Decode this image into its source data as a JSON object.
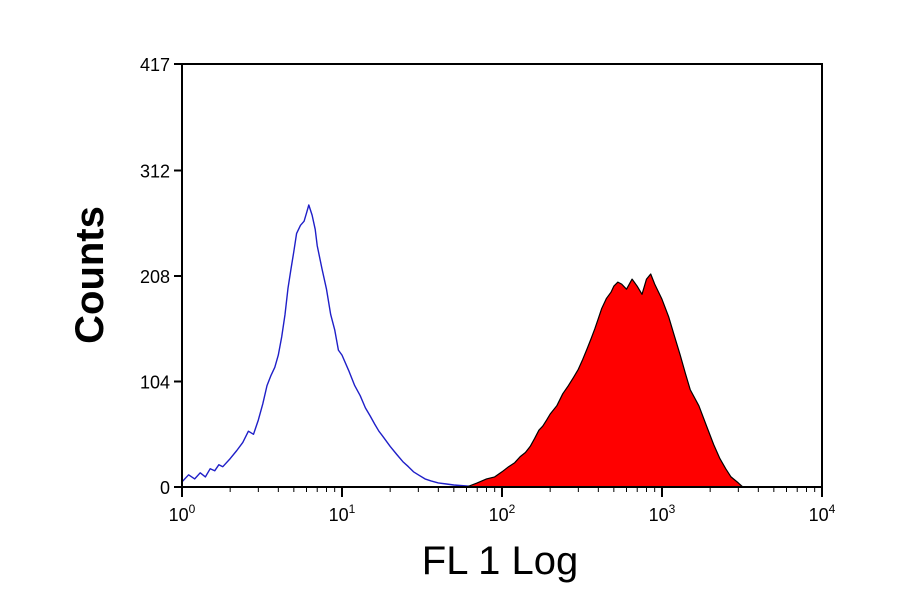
{
  "chart_data": {
    "type": "area",
    "title": "",
    "xlabel": "FL 1 Log",
    "ylabel": "Counts",
    "x_scale": "log",
    "xlim": [
      1,
      10000
    ],
    "ylim": [
      0,
      417
    ],
    "x_ticks": [
      {
        "value": 1,
        "base": "10",
        "exp": "0"
      },
      {
        "value": 10,
        "base": "10",
        "exp": "1"
      },
      {
        "value": 100,
        "base": "10",
        "exp": "2"
      },
      {
        "value": 1000,
        "base": "10",
        "exp": "3"
      },
      {
        "value": 10000,
        "base": "10",
        "exp": "4"
      }
    ],
    "y_ticks": [
      {
        "value": 0,
        "label": "0"
      },
      {
        "value": 104,
        "label": "104"
      },
      {
        "value": 208,
        "label": "208"
      },
      {
        "value": 312,
        "label": "312"
      },
      {
        "value": 417,
        "label": "417"
      }
    ],
    "grid": false,
    "legend": "none",
    "series": [
      {
        "style": "outline",
        "color": "#1f1fc8",
        "points": [
          [
            1.0,
            5
          ],
          [
            1.1,
            12
          ],
          [
            1.2,
            8
          ],
          [
            1.3,
            14
          ],
          [
            1.4,
            10
          ],
          [
            1.5,
            18
          ],
          [
            1.6,
            16
          ],
          [
            1.7,
            22
          ],
          [
            1.8,
            20
          ],
          [
            2.0,
            28
          ],
          [
            2.2,
            36
          ],
          [
            2.4,
            44
          ],
          [
            2.6,
            55
          ],
          [
            2.8,
            52
          ],
          [
            3.0,
            66
          ],
          [
            3.2,
            82
          ],
          [
            3.4,
            100
          ],
          [
            3.6,
            110
          ],
          [
            3.8,
            118
          ],
          [
            4.0,
            130
          ],
          [
            4.2,
            148
          ],
          [
            4.4,
            170
          ],
          [
            4.6,
            196
          ],
          [
            4.8,
            215
          ],
          [
            5.0,
            232
          ],
          [
            5.2,
            250
          ],
          [
            5.5,
            258
          ],
          [
            5.8,
            262
          ],
          [
            6.0,
            270
          ],
          [
            6.2,
            278
          ],
          [
            6.5,
            268
          ],
          [
            6.8,
            254
          ],
          [
            7.0,
            238
          ],
          [
            7.5,
            215
          ],
          [
            8.0,
            195
          ],
          [
            8.5,
            170
          ],
          [
            9.0,
            155
          ],
          [
            9.5,
            135
          ],
          [
            10.0,
            130
          ],
          [
            11.0,
            115
          ],
          [
            12.0,
            100
          ],
          [
            13.0,
            90
          ],
          [
            14.0,
            78
          ],
          [
            15.0,
            70
          ],
          [
            16.0,
            62
          ],
          [
            17.0,
            55
          ],
          [
            18.0,
            50
          ],
          [
            20.0,
            40
          ],
          [
            22.0,
            32
          ],
          [
            24.0,
            25
          ],
          [
            26.0,
            20
          ],
          [
            28.0,
            15
          ],
          [
            30.0,
            12
          ],
          [
            33.0,
            8
          ],
          [
            36.0,
            6
          ],
          [
            40.0,
            4
          ],
          [
            45.0,
            3
          ],
          [
            50.0,
            2
          ],
          [
            60.0,
            1
          ],
          [
            70.0,
            0
          ]
        ]
      },
      {
        "style": "filled",
        "color": "#ff0000",
        "outline_color": "#000000",
        "points": [
          [
            60.0,
            0
          ],
          [
            70.0,
            4
          ],
          [
            80.0,
            8
          ],
          [
            90.0,
            10
          ],
          [
            100.0,
            15
          ],
          [
            110.0,
            20
          ],
          [
            120.0,
            24
          ],
          [
            130.0,
            30
          ],
          [
            140.0,
            34
          ],
          [
            150.0,
            40
          ],
          [
            160.0,
            48
          ],
          [
            170.0,
            56
          ],
          [
            180.0,
            60
          ],
          [
            190.0,
            66
          ],
          [
            200.0,
            72
          ],
          [
            220.0,
            80
          ],
          [
            240.0,
            92
          ],
          [
            260.0,
            100
          ],
          [
            280.0,
            108
          ],
          [
            300.0,
            116
          ],
          [
            320.0,
            126
          ],
          [
            340.0,
            136
          ],
          [
            360.0,
            146
          ],
          [
            380.0,
            156
          ],
          [
            400.0,
            166
          ],
          [
            420.0,
            176
          ],
          [
            450.0,
            186
          ],
          [
            480.0,
            192
          ],
          [
            500.0,
            198
          ],
          [
            530.0,
            202
          ],
          [
            560.0,
            200
          ],
          [
            600.0,
            195
          ],
          [
            650.0,
            205
          ],
          [
            700.0,
            198
          ],
          [
            750.0,
            190
          ],
          [
            800.0,
            205
          ],
          [
            850.0,
            210
          ],
          [
            900.0,
            200
          ],
          [
            1000.0,
            185
          ],
          [
            1100.0,
            168
          ],
          [
            1200.0,
            148
          ],
          [
            1300.0,
            130
          ],
          [
            1400.0,
            112
          ],
          [
            1500.0,
            96
          ],
          [
            1700.0,
            80
          ],
          [
            1900.0,
            60
          ],
          [
            2100.0,
            42
          ],
          [
            2300.0,
            28
          ],
          [
            2500.0,
            18
          ],
          [
            2700.0,
            10
          ],
          [
            3000.0,
            4
          ],
          [
            3200.0,
            0
          ]
        ]
      }
    ]
  }
}
